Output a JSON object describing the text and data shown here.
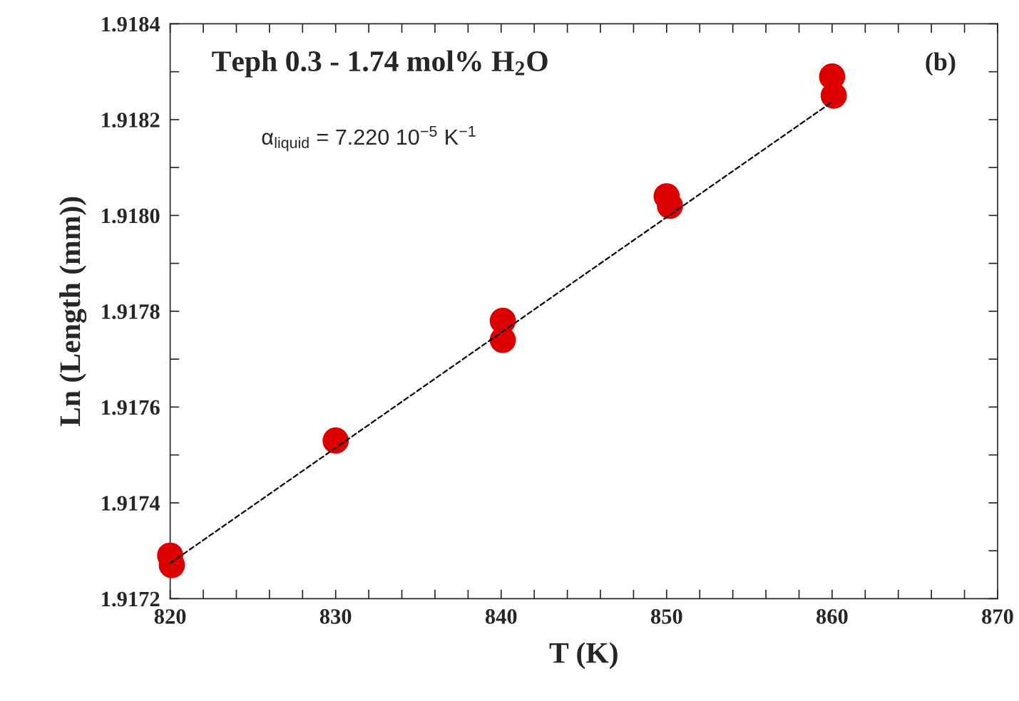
{
  "chart_data": {
    "type": "scatter",
    "xlabel": "T (K)",
    "ylabel": "Ln (Length (mm))",
    "annotations": [
      "Teph 0.3 - 1.74 mol% H$_{2}$O",
      "(b)",
      "α$_{liquid}$ = 7.220 10$^{−5}$ K$^{−1}$"
    ],
    "series": [
      {
        "color": "#dd0000",
        "marker": "circle",
        "x": [
          820,
          820.1,
          830,
          840.1,
          840.1,
          850,
          850.2,
          860,
          860.1
        ],
        "values": [
          1.91729,
          1.91727,
          1.91753,
          1.91778,
          1.91774,
          1.91804,
          1.91802,
          1.91829,
          1.91825
        ]
      },
      {
        "type": "line",
        "color": "#000000",
        "line_style": "dashed",
        "x": [
          820,
          860
        ],
        "values": [
          1.917274,
          1.918237
        ]
      }
    ],
    "xlim": [
      820,
      870
    ],
    "ylim": [
      1.9172,
      1.9184
    ],
    "xticks": [
      820,
      {
        "value": 822,
        "label": null
      },
      {
        "value": 824,
        "label": null
      },
      {
        "value": 826,
        "label": null
      },
      {
        "value": 828,
        "label": null
      },
      830,
      {
        "value": 832,
        "label": null
      },
      {
        "value": 834,
        "label": null
      },
      {
        "value": 836,
        "label": null
      },
      {
        "value": 838,
        "label": null
      },
      840,
      {
        "value": 842,
        "label": null
      },
      {
        "value": 844,
        "label": null
      },
      {
        "value": 846,
        "label": null
      },
      {
        "value": 848,
        "label": null
      },
      850,
      {
        "value": 852,
        "label": null
      },
      {
        "value": 854,
        "label": null
      },
      {
        "value": 856,
        "label": null
      },
      {
        "value": 858,
        "label": null
      },
      860,
      {
        "value": 862,
        "label": null
      },
      {
        "value": 864,
        "label": null
      },
      {
        "value": 866,
        "label": null
      },
      {
        "value": 868,
        "label": null
      },
      870
    ],
    "yticks": [
      1.9172,
      {
        "value": 1.9173,
        "label": null
      },
      1.9174,
      {
        "value": 1.9175,
        "label": null
      },
      1.9176,
      {
        "value": 1.9177,
        "label": null
      },
      1.9178,
      {
        "value": 1.9179,
        "label": null
      },
      {
        "value": 1.918,
        "label": "1.9180"
      },
      {
        "value": 1.9181,
        "label": null
      },
      1.9182,
      {
        "value": 1.9183,
        "label": null
      },
      1.9184
    ],
    "grid": false,
    "legend": false
  }
}
